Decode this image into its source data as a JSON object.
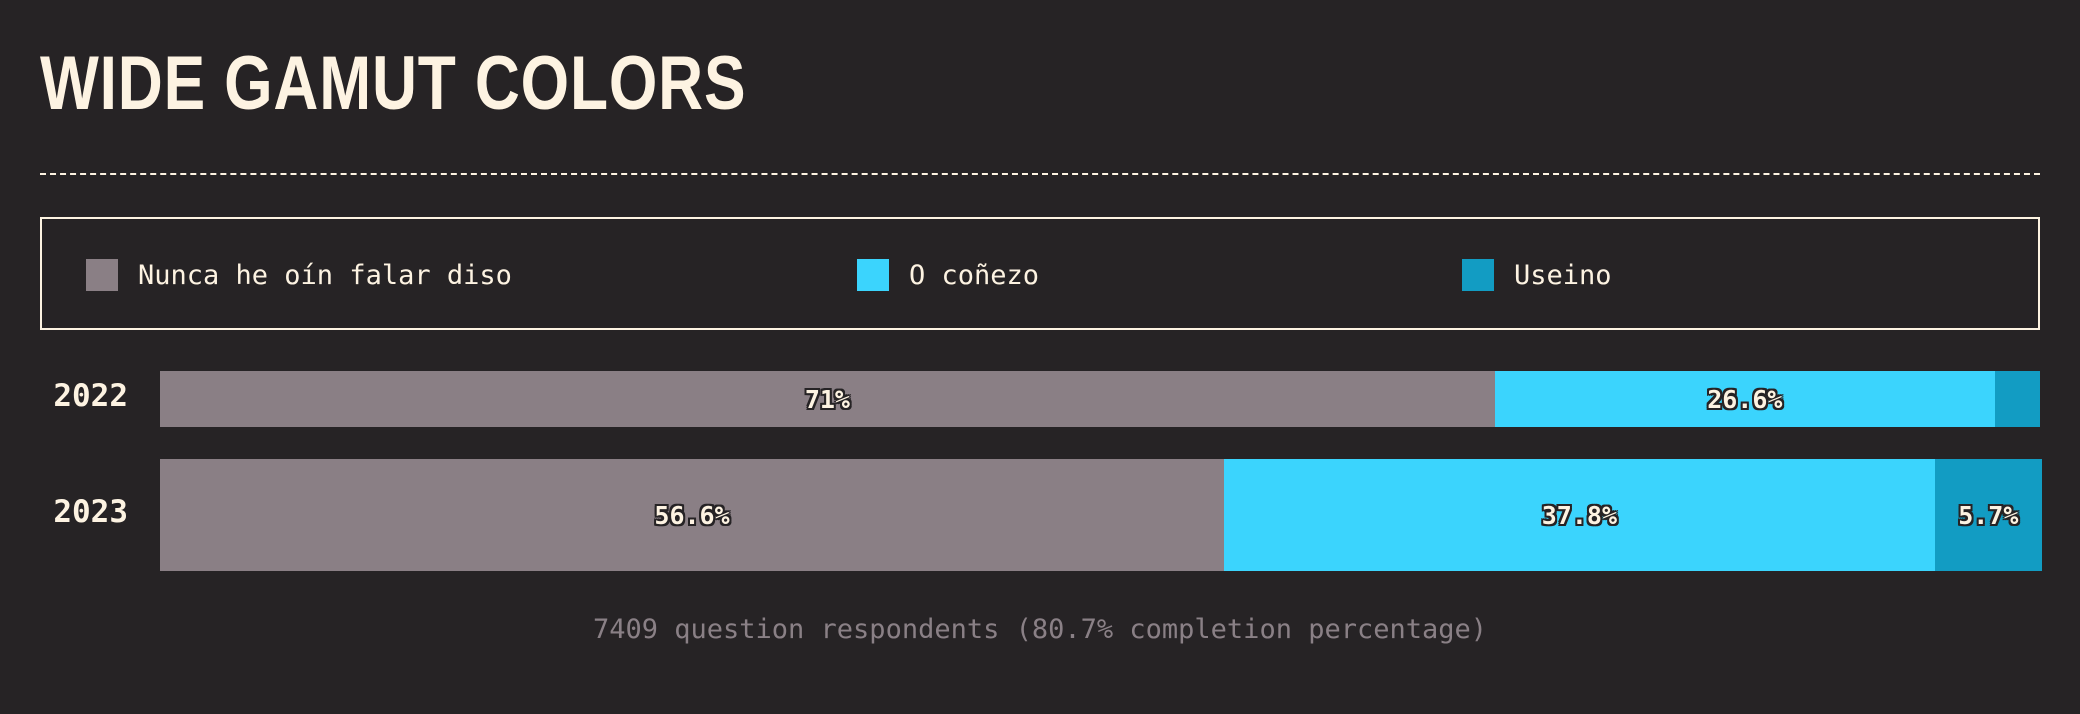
{
  "title": "WIDE GAMUT COLORS",
  "footnote": "7409 question respondents (80.7% completion percentage)",
  "legend": [
    {
      "label": "Nunca he oín falar diso",
      "color": "#8a7f85"
    },
    {
      "label": "O coñezo",
      "color": "#3bd4fd"
    },
    {
      "label": "Useino",
      "color": "#129cc3"
    }
  ],
  "chart_data": {
    "type": "bar",
    "orientation": "horizontal",
    "stacked": true,
    "percent_scale": true,
    "title": "WIDE GAMUT COLORS",
    "categories": [
      "2022",
      "2023"
    ],
    "series": [
      {
        "name": "Nunca he oín falar diso",
        "values": [
          71,
          56.6
        ],
        "color": "#8a7f85"
      },
      {
        "name": "O coñezo",
        "values": [
          26.6,
          37.8
        ],
        "color": "#3bd4fd"
      },
      {
        "name": "Useino",
        "values": [
          2.4,
          5.7
        ],
        "color": "#129cc3"
      }
    ],
    "data_labels": [
      [
        "71%",
        "26.6%",
        ""
      ],
      [
        "56.6%",
        "37.8%",
        "5.7%"
      ]
    ]
  }
}
